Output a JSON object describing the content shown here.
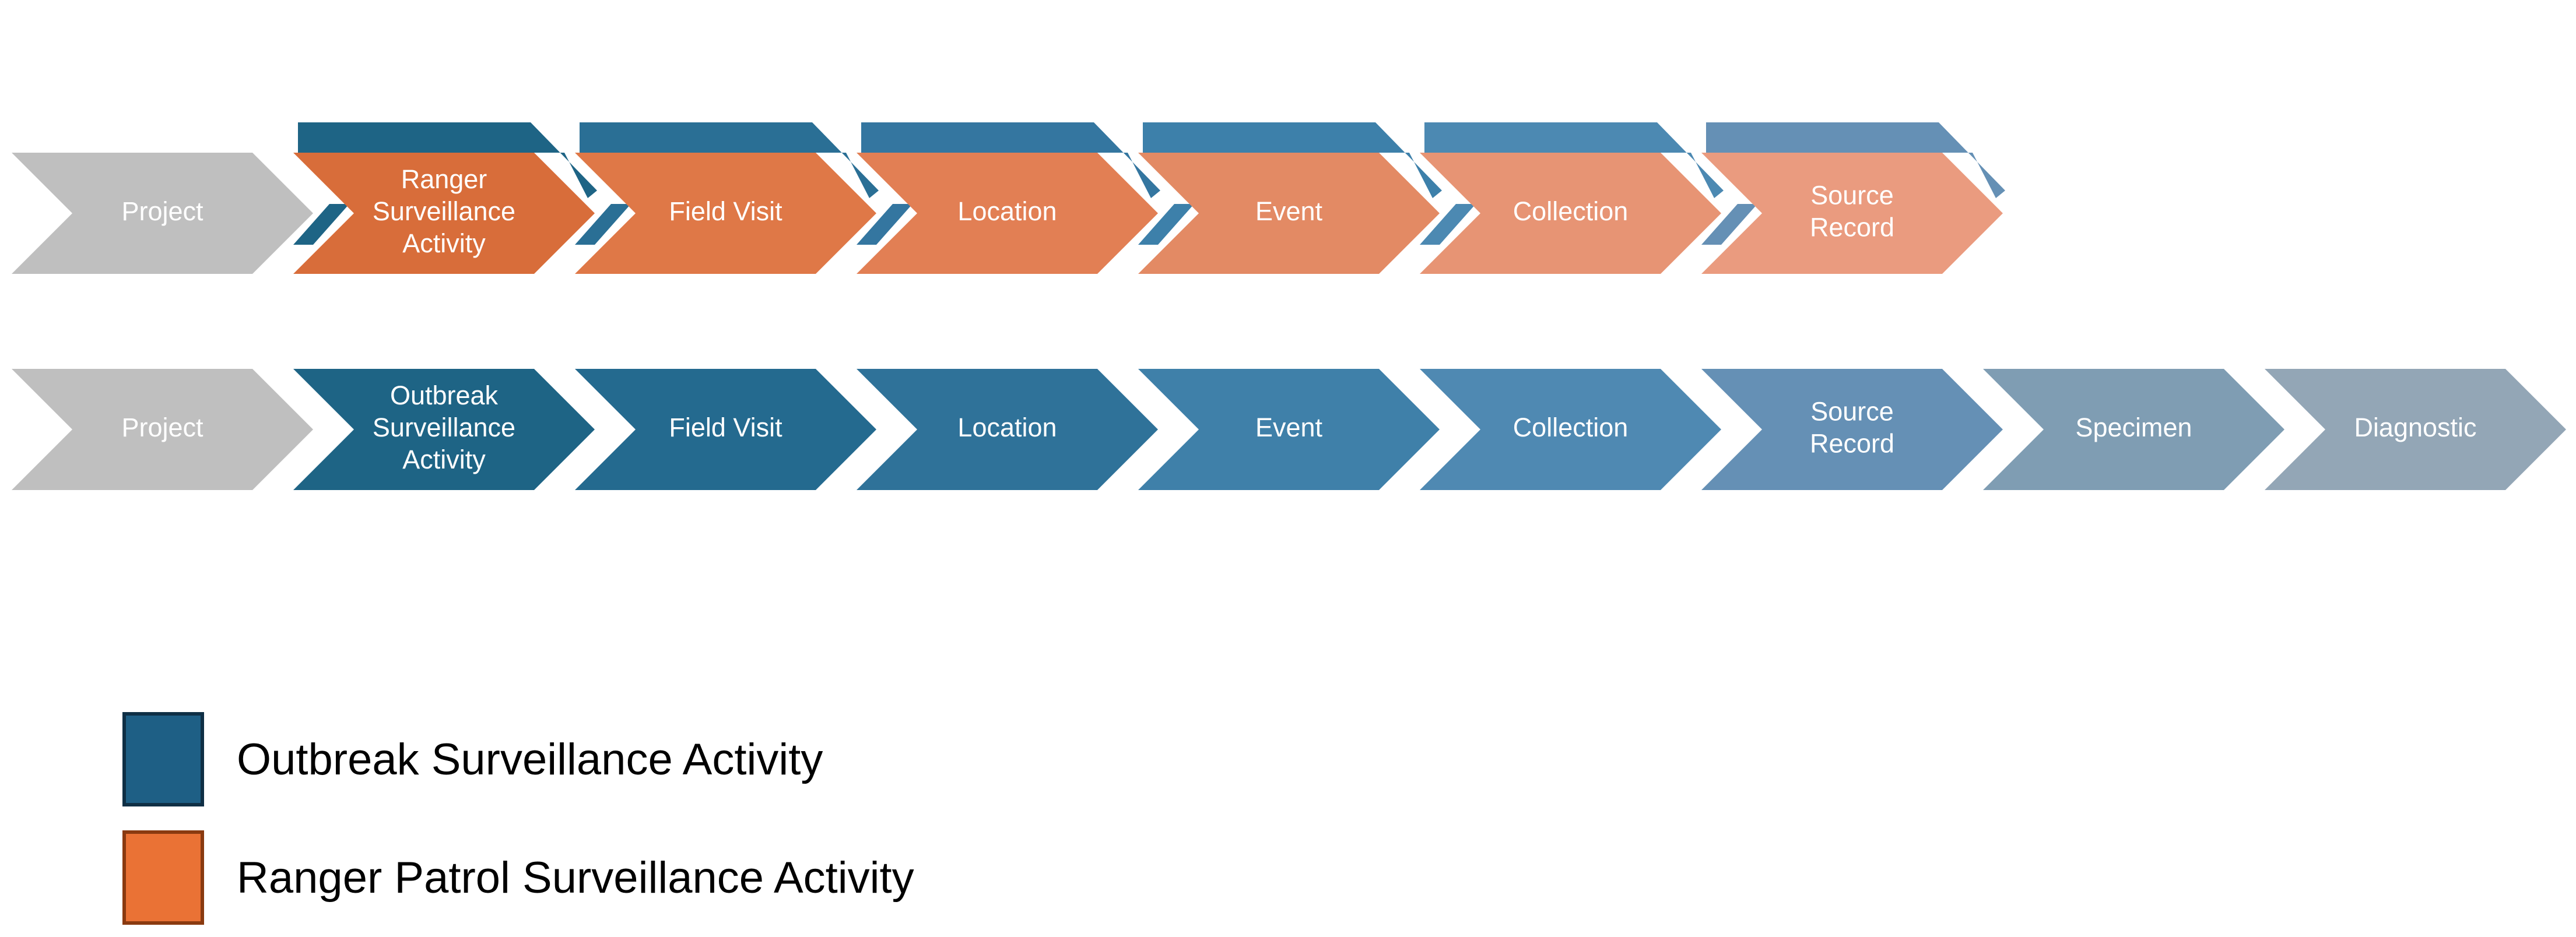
{
  "colors": {
    "project": "#bfbfbf",
    "tab_blue": [
      "#1e6485",
      "#2a6f95",
      "#3476a0",
      "#3d80aa",
      "#4c89b2",
      "#6590b5"
    ],
    "ranger_orange": [
      "#d86d3a",
      "#df7847",
      "#e27f54",
      "#e38a64",
      "#e79474",
      "#ea9b7f"
    ],
    "outbreak_blue": [
      "#1e6485",
      "#246a8f",
      "#2f7299",
      "#3f80a9",
      "#4f89b2",
      "#6590b5",
      "#7f9db3",
      "#93a6b6"
    ],
    "legend_outbreak_fill": "#1e5f85",
    "legend_outbreak_border": "#0f2f45",
    "legend_ranger_fill": "#ea7235",
    "legend_ranger_border": "#8a3a10"
  },
  "ranger_workflow": {
    "steps": [
      {
        "label": "Project"
      },
      {
        "label": "Ranger Surveillance Activity"
      },
      {
        "label": "Field Visit"
      },
      {
        "label": "Location"
      },
      {
        "label": "Event"
      },
      {
        "label": "Collection"
      },
      {
        "label": "Source Record"
      }
    ]
  },
  "outbreak_workflow": {
    "steps": [
      {
        "label": "Project"
      },
      {
        "label": "Outbreak Surveillance Activity"
      },
      {
        "label": "Field Visit"
      },
      {
        "label": "Location"
      },
      {
        "label": "Event"
      },
      {
        "label": "Collection"
      },
      {
        "label": "Source Record"
      },
      {
        "label": "Specimen"
      },
      {
        "label": "Diagnostic"
      }
    ]
  },
  "legend": {
    "outbreak_label": "Outbreak Surveillance Activity",
    "ranger_label": "Ranger Patrol Surveillance Activity"
  }
}
